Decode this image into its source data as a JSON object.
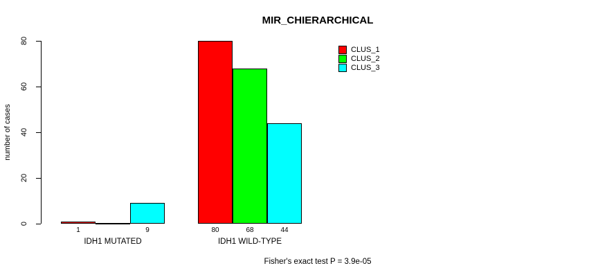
{
  "chart_data": {
    "type": "bar",
    "title": "MIR_CHIERARCHICAL",
    "ylabel": "number of cases",
    "xlabel": "",
    "categories": [
      "IDH1 MUTATED",
      "IDH1 WILD-TYPE"
    ],
    "series": [
      {
        "name": "CLUS_1",
        "color": "#ff0000",
        "values": [
          1,
          80
        ]
      },
      {
        "name": "CLUS_2",
        "color": "#00ff00",
        "values": [
          0,
          68
        ]
      },
      {
        "name": "CLUS_3",
        "color": "#00ffff",
        "values": [
          9,
          44
        ]
      }
    ],
    "bar_value_labels": [
      "1",
      "",
      "9",
      "80",
      "68",
      "44"
    ],
    "ylim": [
      0,
      80
    ],
    "yticks": [
      0,
      20,
      40,
      60,
      80
    ],
    "legend": {
      "position": "top-right",
      "entries": [
        "CLUS_1",
        "CLUS_2",
        "CLUS_3"
      ]
    },
    "grid": false,
    "annotation": "Fisher's exact test P = 3.9e-05"
  }
}
